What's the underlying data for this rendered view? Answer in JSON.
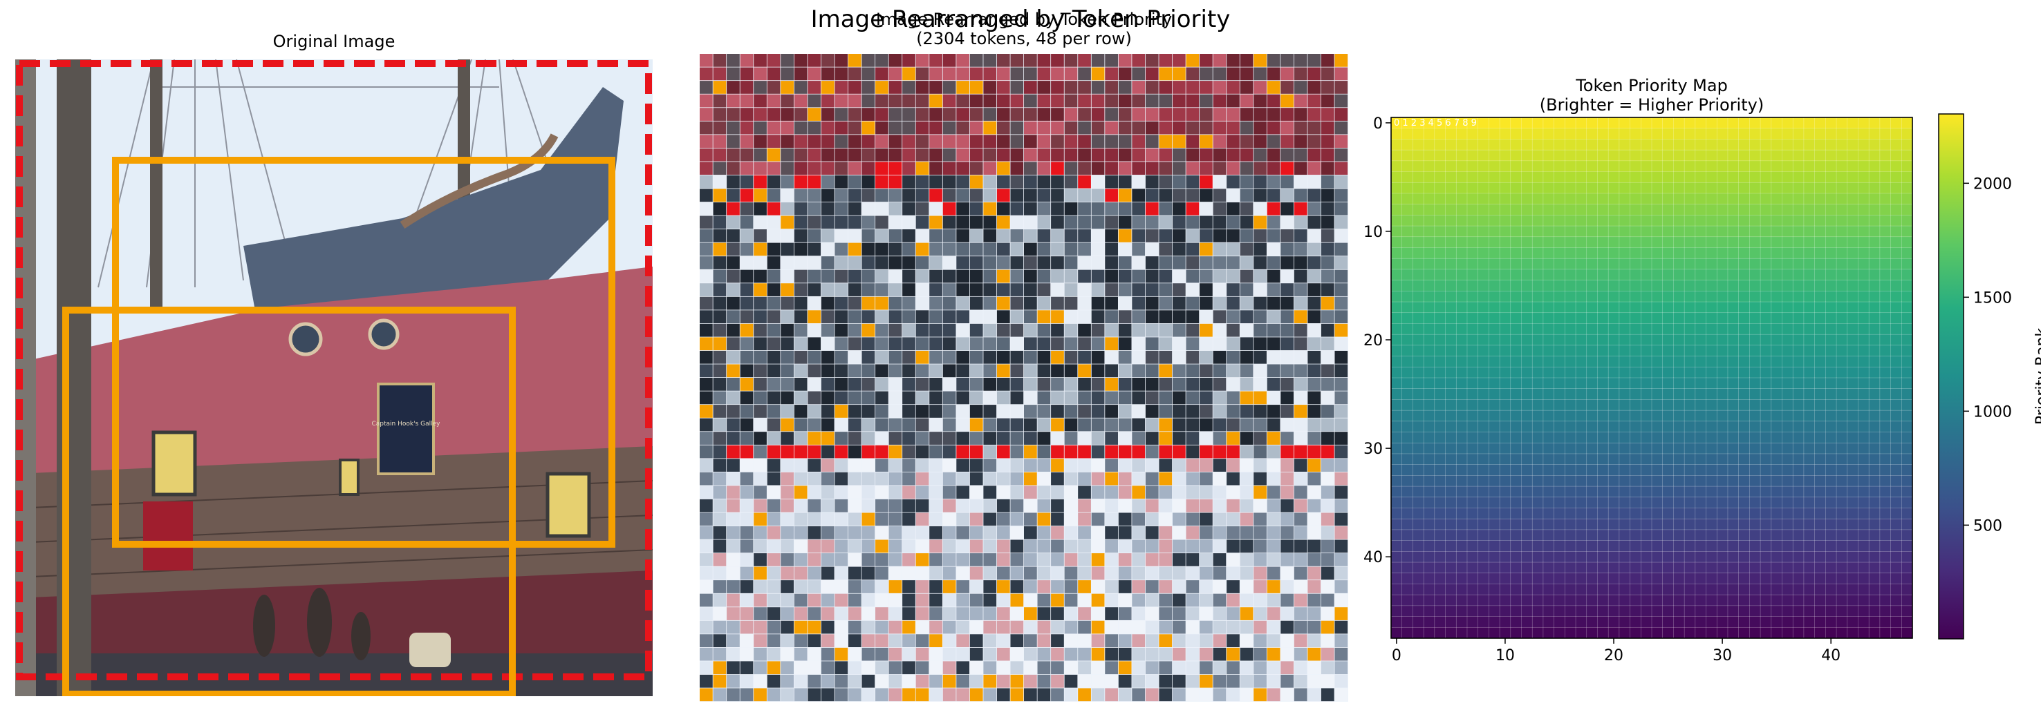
{
  "figure": {
    "suptitle": "Image Rearranged by Token Priority"
  },
  "panels": {
    "original": {
      "title": "Original Image",
      "sign_text": "Captain Hook's Galley"
    },
    "rearranged": {
      "title_line1": "Image Rearranged by Token Priority",
      "title_line2": "(2304 tokens, 48 per row)"
    },
    "priority_map": {
      "title_line1": "Token Priority Map",
      "title_line2": "(Brighter = Higher Priority)",
      "cell_numbers": "0 1 2 3 4 5 6 7 8 9"
    }
  },
  "chart_data": [
    {
      "type": "image",
      "title": "Original Image",
      "annotations": [
        {
          "kind": "dashed-box",
          "color": "#e8141b",
          "region": "near full image"
        },
        {
          "kind": "box",
          "color": "#f5a000",
          "region": "ship hull center-right"
        },
        {
          "kind": "box",
          "color": "#f5a000",
          "region": "lower-left quay and hull"
        }
      ]
    },
    {
      "type": "image",
      "title": "Image Rearranged by Token Priority",
      "subtitle": "(2304 tokens, 48 per row)",
      "grid": {
        "rows": 48,
        "cols": 48,
        "tokens": 2304
      }
    },
    {
      "type": "heatmap",
      "title": "Token Priority Map",
      "subtitle": "(Brighter = Higher Priority)",
      "rows": 48,
      "cols": 48,
      "value_rule": "rank = 2304 - (row*48 + col)",
      "x_ticks": [
        0,
        10,
        20,
        30,
        40
      ],
      "y_ticks": [
        0,
        10,
        20,
        30,
        40
      ],
      "xlim": [
        -0.5,
        47.5
      ],
      "ylim": [
        47.5,
        -0.5
      ],
      "colormap": "viridis",
      "colorbar": {
        "label": "Priority Rank",
        "ticks": [
          500,
          1000,
          1500,
          2000
        ],
        "range": [
          1,
          2304
        ]
      },
      "grid": true
    }
  ],
  "colors": {
    "red_dash": "#e8141b",
    "orange_box": "#f5a000",
    "sky": "#e4eef8",
    "hull_red": "#b25a6a",
    "hull_wood": "#6e5a52",
    "hull_blue": "#52627a"
  }
}
